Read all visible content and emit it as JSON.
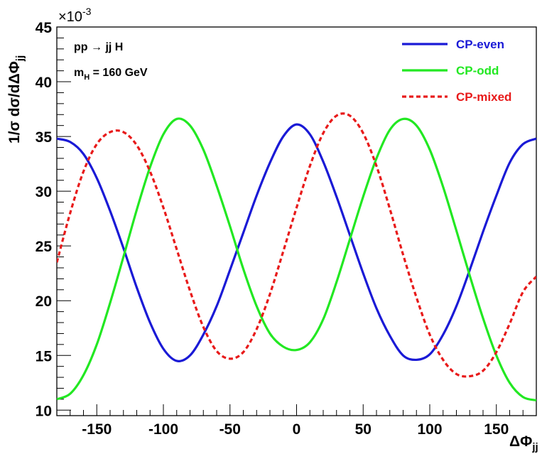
{
  "chart_data": {
    "type": "line",
    "xlabel": "ΔΦjj",
    "ylabel": "1/σ dσ/dΔΦjj",
    "y_scale_label": "×10-3",
    "xlim": [
      -180,
      180
    ],
    "ylim": [
      9.5,
      45
    ],
    "xticks": [
      -150,
      -100,
      -50,
      0,
      50,
      100,
      150
    ],
    "yticks": [
      10,
      15,
      20,
      25,
      30,
      35,
      40,
      45
    ],
    "annotations": [
      "pp → jj H",
      "mH = 160 GeV"
    ],
    "legend_position": "top-right",
    "grid": false,
    "series": [
      {
        "name": "CP-even",
        "color": "#1a1ad6",
        "dash": "solid",
        "x": [
          -180,
          -170,
          -160,
          -150,
          -140,
          -130,
          -120,
          -110,
          -100,
          -90,
          -80,
          -70,
          -60,
          -50,
          -40,
          -30,
          -20,
          -10,
          0,
          10,
          20,
          30,
          40,
          50,
          60,
          70,
          80,
          90,
          100,
          110,
          120,
          130,
          140,
          150,
          160,
          170,
          180
        ],
        "y": [
          34.8,
          34.5,
          33.4,
          31.2,
          28.2,
          24.8,
          21.2,
          18.0,
          15.6,
          14.5,
          15.0,
          16.9,
          19.5,
          22.8,
          26.2,
          29.6,
          32.6,
          35.0,
          36.1,
          35.2,
          32.7,
          29.5,
          26.0,
          22.5,
          19.3,
          16.8,
          15.0,
          14.6,
          15.1,
          16.9,
          19.5,
          22.8,
          26.3,
          29.6,
          32.6,
          34.3,
          34.8
        ]
      },
      {
        "name": "CP-odd",
        "color": "#22e822",
        "dash": "solid",
        "x": [
          -180,
          -170,
          -160,
          -150,
          -140,
          -130,
          -120,
          -110,
          -100,
          -90,
          -80,
          -70,
          -60,
          -50,
          -40,
          -30,
          -20,
          -10,
          0,
          10,
          20,
          30,
          40,
          50,
          60,
          70,
          80,
          90,
          100,
          110,
          120,
          130,
          140,
          150,
          160,
          170,
          180
        ],
        "y": [
          11.0,
          11.5,
          13.2,
          16.0,
          19.8,
          24.0,
          28.3,
          32.2,
          35.2,
          36.6,
          36.0,
          33.8,
          30.5,
          26.8,
          22.9,
          19.5,
          17.0,
          15.8,
          15.5,
          16.2,
          18.3,
          21.7,
          25.6,
          29.5,
          33.0,
          35.6,
          36.6,
          36.0,
          33.8,
          30.4,
          26.4,
          22.3,
          18.4,
          15.0,
          12.5,
          11.2,
          10.9
        ]
      },
      {
        "name": "CP-mixed",
        "color": "#e81a1a",
        "dash": "dashed",
        "x": [
          -180,
          -170,
          -160,
          -150,
          -140,
          -130,
          -120,
          -110,
          -100,
          -90,
          -80,
          -70,
          -60,
          -50,
          -40,
          -30,
          -20,
          -10,
          0,
          10,
          20,
          30,
          40,
          50,
          60,
          70,
          80,
          90,
          100,
          110,
          120,
          130,
          140,
          150,
          160,
          170,
          180
        ],
        "y": [
          23.5,
          28.0,
          31.8,
          34.3,
          35.4,
          35.4,
          34.2,
          31.8,
          28.5,
          24.7,
          20.9,
          17.6,
          15.4,
          14.7,
          15.3,
          17.4,
          20.6,
          24.5,
          28.5,
          32.3,
          35.3,
          36.9,
          36.9,
          35.3,
          32.3,
          28.4,
          24.2,
          20.3,
          16.9,
          14.6,
          13.3,
          13.1,
          13.6,
          15.3,
          17.9,
          20.8,
          22.2
        ]
      }
    ]
  }
}
